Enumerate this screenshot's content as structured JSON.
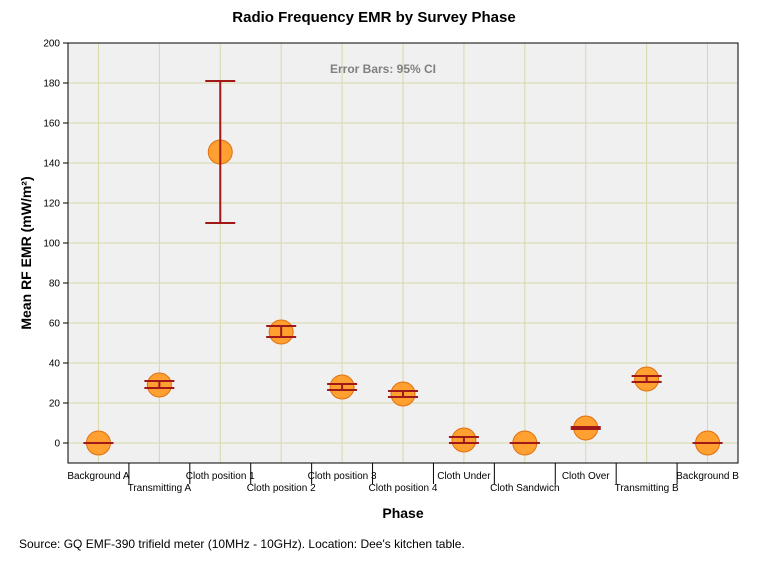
{
  "chart_data": {
    "type": "scatter",
    "title": "Radio Frequency EMR by Survey Phase",
    "xlabel": "Phase",
    "ylabel": "Mean RF EMR (mW/m²)",
    "ylim": [
      -10,
      200
    ],
    "yticks": [
      0,
      20,
      40,
      60,
      80,
      100,
      120,
      140,
      160,
      180,
      200
    ],
    "grid": true,
    "annotation": "Error Bars: 95% CI",
    "categories": [
      "Background A",
      "Transmitting A",
      "Cloth position 1",
      "Cloth position 2",
      "Cloth position 3",
      "Cloth position 4",
      "Cloth Under",
      "Cloth Sandwich",
      "Cloth Over",
      "Transmitting B",
      "Background B"
    ],
    "series": [
      {
        "name": "Mean RF EMR",
        "values": [
          0,
          29,
          145.5,
          55.5,
          28,
          24.5,
          1.5,
          0,
          7.5,
          32,
          0
        ],
        "ci_low": [
          0,
          27.5,
          110,
          53,
          26.5,
          23,
          0,
          0,
          7,
          30.5,
          0
        ],
        "ci_high": [
          0,
          31,
          181,
          58.5,
          29.5,
          26,
          3,
          0,
          8,
          33.5,
          0
        ]
      }
    ],
    "colors": {
      "marker_fill": "#ffa030",
      "marker_stroke": "#e07010",
      "error_bar": "#a01818",
      "plot_background": "#f0f0f0",
      "grid": "#d8d8a8"
    }
  },
  "source_note": "Source: GQ EMF-390 trifield meter (10MHz - 10GHz). Location: Dee's kitchen table."
}
